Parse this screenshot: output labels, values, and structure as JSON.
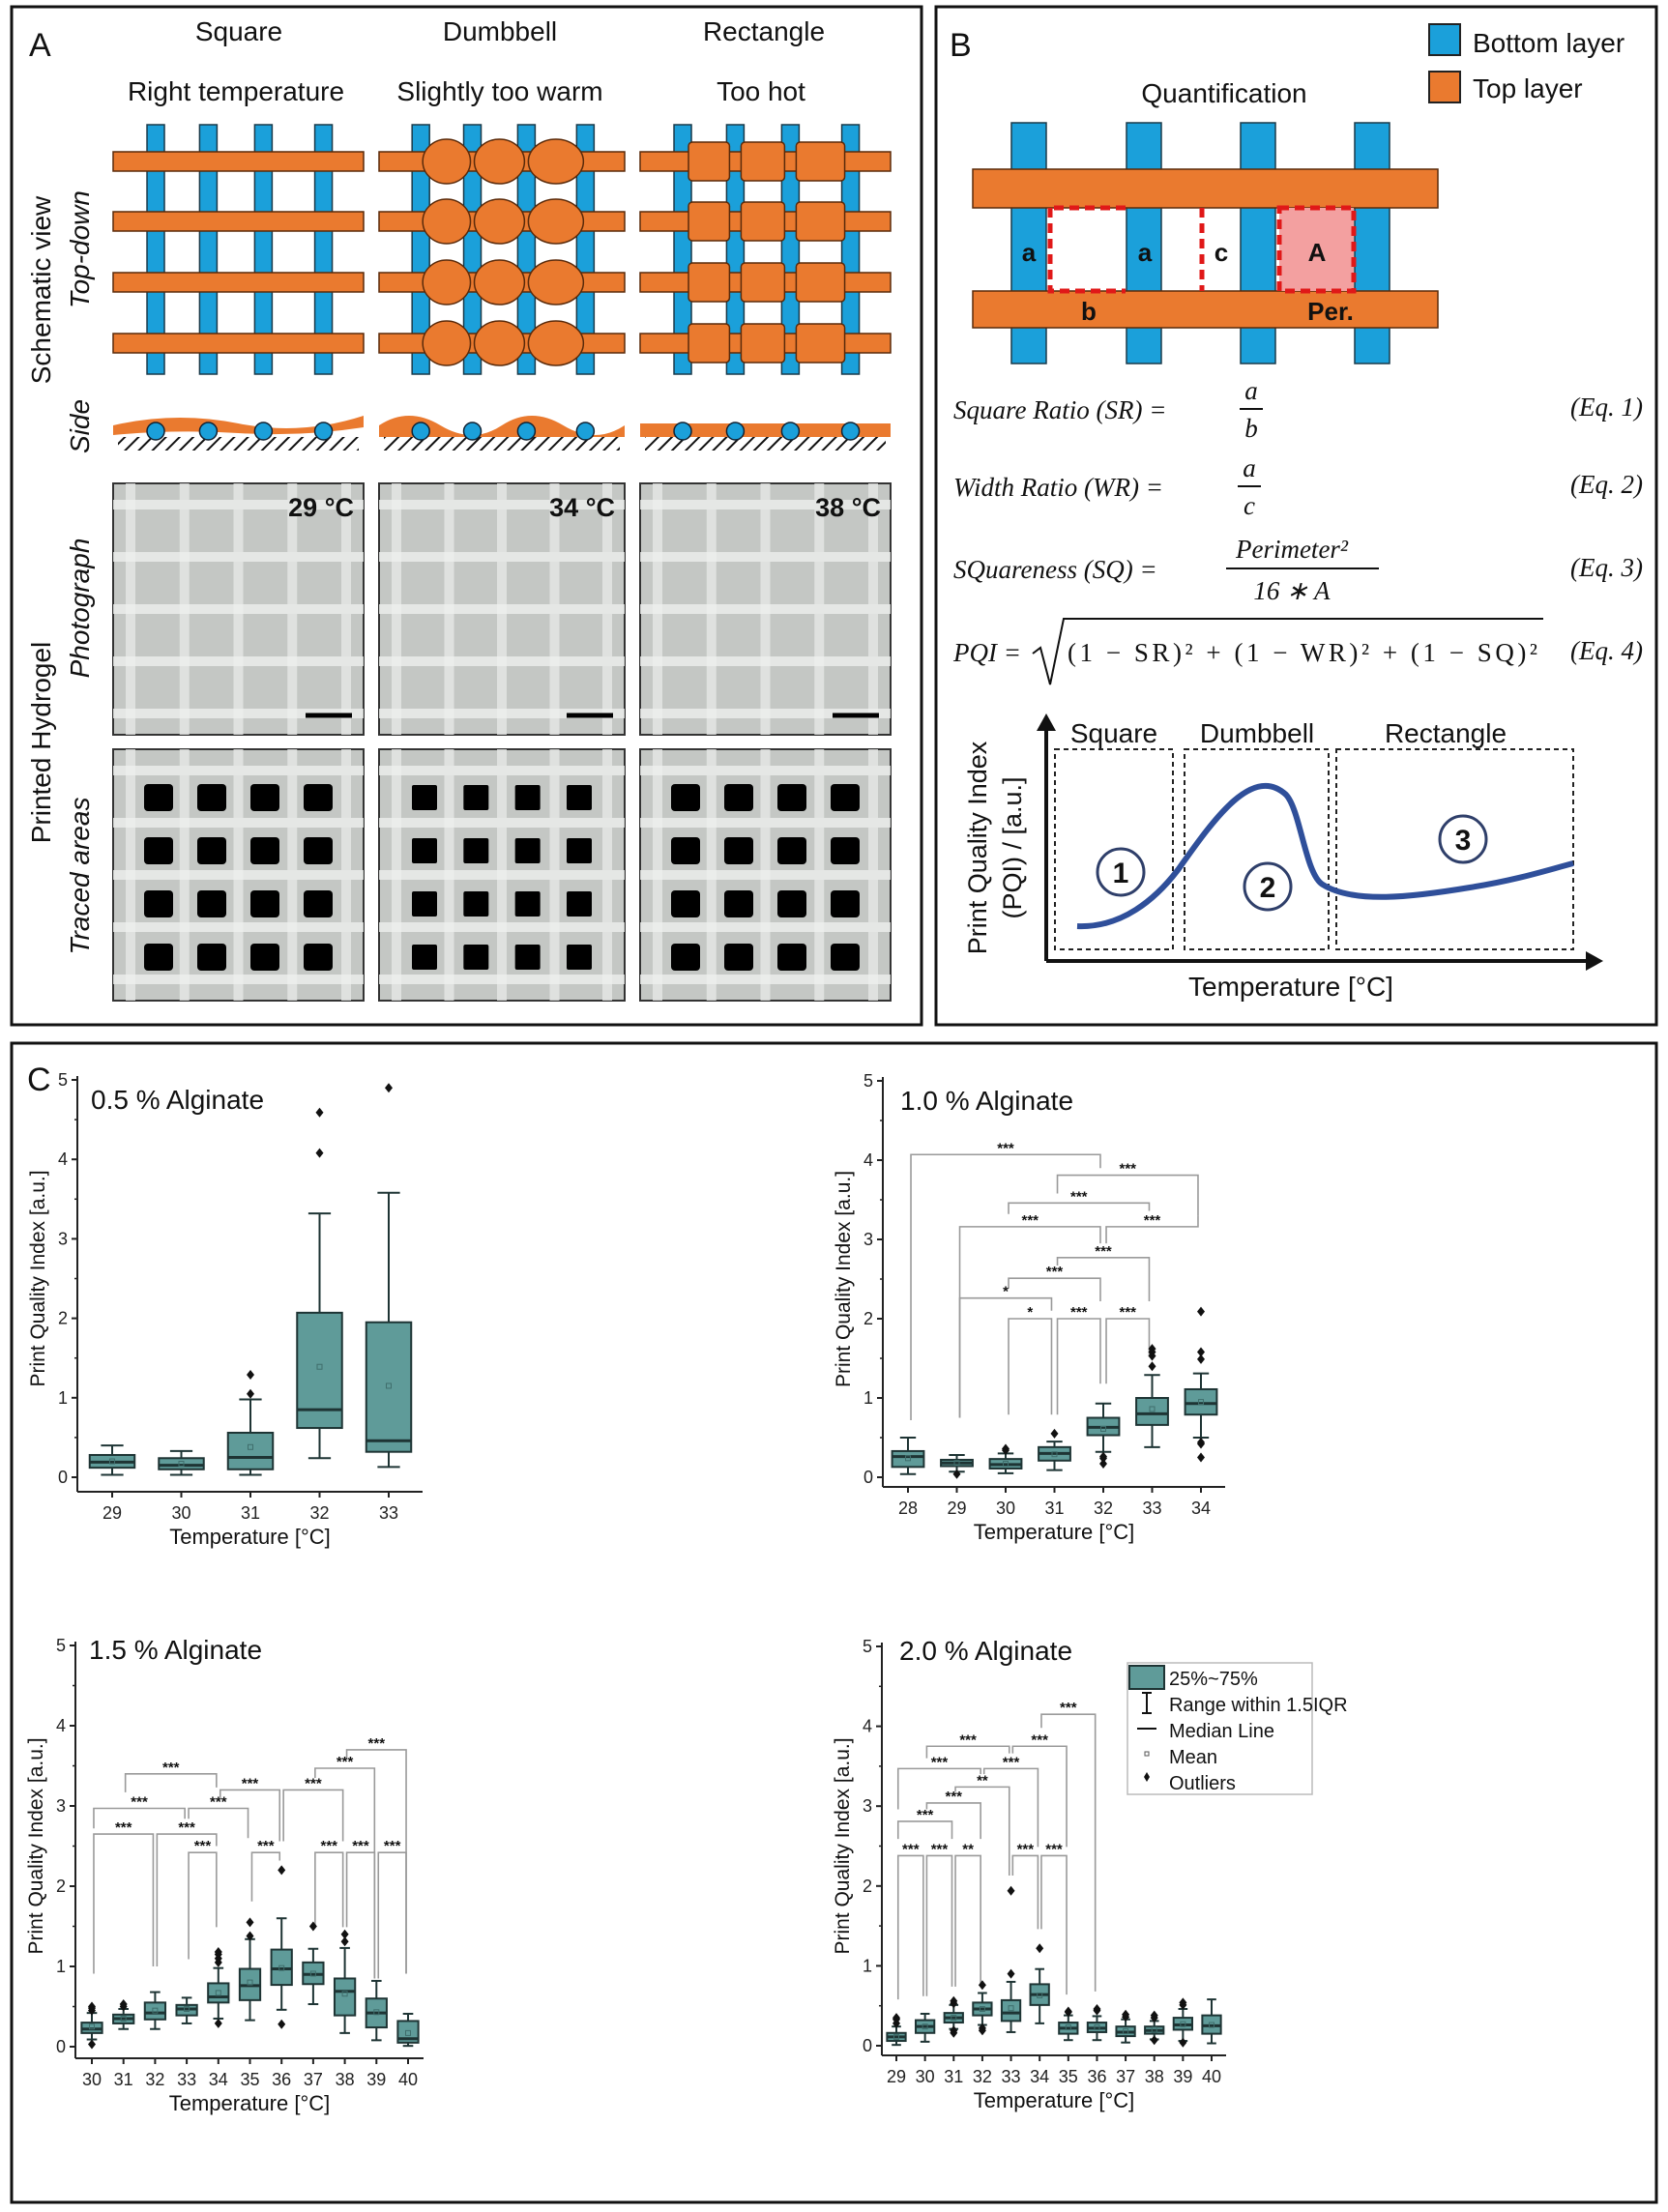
{
  "colors": {
    "bottom_layer": "#1ba0da",
    "top_layer": "#ea7a2f",
    "box_fill": "#5f9b99",
    "box_stroke": "#1e3434",
    "curve": "#2f4f9a",
    "bracket": "#9a9a9a"
  },
  "panel_a": {
    "label": "A",
    "columns": [
      {
        "shape": "Square",
        "condition": "Right temperature",
        "temperature": "29 °C"
      },
      {
        "shape": "Dumbbell",
        "condition": "Slightly too warm",
        "temperature": "34 °C"
      },
      {
        "shape": "Rectangle",
        "condition": "Too hot",
        "temperature": "38 °C"
      }
    ],
    "row_labels": {
      "schematic": "Schematic view",
      "top_down": "Top-down",
      "side": "Side",
      "printed": "Printed Hydrogel",
      "photograph": "Photograph",
      "traced": "Traced areas"
    }
  },
  "panel_b": {
    "label": "B",
    "legend": [
      {
        "label": "Bottom layer"
      },
      {
        "label": "Top layer"
      }
    ],
    "title": "Quantification",
    "labels": {
      "a": "a",
      "b": "b",
      "c": "c",
      "area": "A",
      "perimeter": "Per."
    },
    "equations": [
      {
        "lhs": "Square Ratio (SR) =",
        "num": "a",
        "den": "b",
        "tag": "(Eq. 1)"
      },
      {
        "lhs": "Width Ratio (WR) =",
        "num": "a",
        "den": "c",
        "tag": "(Eq. 2)"
      },
      {
        "lhs": "SQuareness (SQ) =",
        "num": "Perimeter²",
        "den": "16 ∗ A",
        "tag": "(Eq. 3)"
      },
      {
        "lhs": "PQI =",
        "radicand": "(1 − SR)² + (1 − WR)² + (1 − SQ)²",
        "tag": "(Eq. 4)"
      }
    ],
    "graph": {
      "regions": [
        "Square",
        "Dumbbell",
        "Rectangle"
      ],
      "numbers": [
        "1",
        "2",
        "3"
      ],
      "ylabel_line1": "Print Quality Index",
      "ylabel_line2": "(PQI) / [a.u.]",
      "xlabel": "Temperature [°C]"
    }
  },
  "panel_c": {
    "label": "C"
  },
  "chart_data": [
    {
      "type": "box",
      "title": "0.5 % Alginate",
      "xlabel": "Temperature [°C]",
      "ylabel": "Print Quality Index [a.u.]",
      "ylim": [
        0,
        5
      ],
      "yticks": [
        0,
        1,
        2,
        3,
        4,
        5
      ],
      "categories": [
        "29",
        "30",
        "31",
        "32",
        "33"
      ],
      "boxes": [
        {
          "whislo": 0.03,
          "q1": 0.12,
          "med": 0.19,
          "q3": 0.28,
          "whishi": 0.4,
          "mean": 0.2,
          "outliers": []
        },
        {
          "whislo": 0.03,
          "q1": 0.1,
          "med": 0.15,
          "q3": 0.24,
          "whishi": 0.33,
          "mean": 0.17,
          "outliers": []
        },
        {
          "whislo": 0.03,
          "q1": 0.1,
          "med": 0.25,
          "q3": 0.56,
          "whishi": 0.98,
          "mean": 0.38,
          "outliers": [
            1.05,
            1.29
          ]
        },
        {
          "whislo": 0.24,
          "q1": 0.62,
          "med": 0.85,
          "q3": 2.07,
          "whishi": 3.32,
          "mean": 1.39,
          "outliers": [
            4.08,
            4.59
          ]
        },
        {
          "whislo": 0.13,
          "q1": 0.32,
          "med": 0.46,
          "q3": 1.95,
          "whishi": 3.58,
          "mean": 1.15,
          "outliers": [
            4.9
          ]
        }
      ],
      "significance": []
    },
    {
      "type": "box",
      "title": "1.0 % Alginate",
      "xlabel": "Temperature [°C]",
      "ylabel": "Print Quality Index [a.u.]",
      "ylim": [
        0,
        5
      ],
      "yticks": [
        0,
        1,
        2,
        3,
        4,
        5
      ],
      "categories": [
        "28",
        "29",
        "30",
        "31",
        "32",
        "33",
        "34"
      ],
      "boxes": [
        {
          "whislo": 0.04,
          "q1": 0.13,
          "med": 0.26,
          "q3": 0.33,
          "whishi": 0.5,
          "mean": 0.24,
          "outliers": []
        },
        {
          "whislo": 0.07,
          "q1": 0.14,
          "med": 0.18,
          "q3": 0.22,
          "whishi": 0.28,
          "mean": 0.18,
          "outliers": [
            0.04
          ]
        },
        {
          "whislo": 0.05,
          "q1": 0.11,
          "med": 0.16,
          "q3": 0.23,
          "whishi": 0.3,
          "mean": 0.17,
          "outliers": [
            0.34,
            0.36
          ]
        },
        {
          "whislo": 0.09,
          "q1": 0.21,
          "med": 0.3,
          "q3": 0.38,
          "whishi": 0.45,
          "mean": 0.29,
          "outliers": [
            0.55
          ]
        },
        {
          "whislo": 0.32,
          "q1": 0.53,
          "med": 0.63,
          "q3": 0.75,
          "whishi": 0.93,
          "mean": 0.61,
          "outliers": [
            0.17,
            0.24,
            0.26
          ]
        },
        {
          "whislo": 0.38,
          "q1": 0.66,
          "med": 0.8,
          "q3": 1.0,
          "whishi": 1.29,
          "mean": 0.86,
          "outliers": [
            1.4,
            1.53,
            1.58,
            1.62
          ]
        },
        {
          "whislo": 0.5,
          "q1": 0.79,
          "med": 0.93,
          "q3": 1.11,
          "whishi": 1.31,
          "mean": 0.95,
          "outliers": [
            0.25,
            0.42,
            0.44,
            1.49,
            1.58,
            2.09
          ]
        }
      ],
      "significance": [
        {
          "from": "28",
          "to": "32",
          "label": "***",
          "y": 4.07,
          "left_to": 0.72,
          "right_to": 3.9
        },
        {
          "from": "31",
          "to": "34",
          "label": "***",
          "y": 3.81,
          "left_to": 3.58,
          "right_to": 3.3
        },
        {
          "from": "30",
          "to": "33",
          "label": "***",
          "y": 3.46,
          "left_to": 3.32,
          "right_to": 3.36
        },
        {
          "from": "29",
          "to": "32",
          "label": "***",
          "y": 3.16,
          "left_to": 0.75,
          "right_to": 2.95
        },
        {
          "from": "32",
          "to": "34",
          "label": "***",
          "y": 3.16,
          "left_to": 2.95,
          "right_to": 3.3
        },
        {
          "from": "31",
          "to": "33",
          "label": "***",
          "y": 2.77,
          "left_to": 2.67,
          "right_to": 2.22
        },
        {
          "from": "30",
          "to": "32",
          "label": "***",
          "y": 2.51,
          "left_to": 2.38,
          "right_to": 2.22
        },
        {
          "from": "29",
          "to": "31",
          "label": "*",
          "y": 2.26,
          "left_to": 0.75,
          "right_to": 2.1
        },
        {
          "from": "30",
          "to": "31",
          "label": "*",
          "y": 2.0,
          "left_to": 0.79,
          "right_to": 0.79
        },
        {
          "from": "31",
          "to": "32",
          "label": "***",
          "y": 2.0,
          "left_to": 0.79,
          "right_to": 1.18
        },
        {
          "from": "32",
          "to": "33",
          "label": "***",
          "y": 2.0,
          "left_to": 1.18,
          "right_to": 1.52
        }
      ]
    },
    {
      "type": "box",
      "title": "1.5 % Alginate",
      "xlabel": "Temperature [°C]",
      "ylabel": "Print Quality Index [a.u.]",
      "ylim": [
        0,
        5
      ],
      "yticks": [
        0,
        1,
        2,
        3,
        4,
        5
      ],
      "categories": [
        "30",
        "31",
        "32",
        "33",
        "34",
        "35",
        "36",
        "37",
        "38",
        "39",
        "40"
      ],
      "boxes": [
        {
          "whislo": 0.09,
          "q1": 0.17,
          "med": 0.22,
          "q3": 0.3,
          "whishi": 0.42,
          "mean": 0.25,
          "outliers": [
            0.03,
            0.45,
            0.48,
            0.5
          ]
        },
        {
          "whislo": 0.22,
          "q1": 0.29,
          "med": 0.35,
          "q3": 0.4,
          "whishi": 0.47,
          "mean": 0.35,
          "outliers": [
            0.5,
            0.53
          ]
        },
        {
          "whislo": 0.22,
          "q1": 0.34,
          "med": 0.42,
          "q3": 0.55,
          "whishi": 0.68,
          "mean": 0.45,
          "outliers": []
        },
        {
          "whislo": 0.29,
          "q1": 0.39,
          "med": 0.47,
          "q3": 0.52,
          "whishi": 0.61,
          "mean": 0.47,
          "outliers": []
        },
        {
          "whislo": 0.35,
          "q1": 0.55,
          "med": 0.62,
          "q3": 0.79,
          "whishi": 0.98,
          "mean": 0.67,
          "outliers": [
            0.29,
            1.05,
            1.1,
            1.15,
            1.18
          ]
        },
        {
          "whislo": 0.33,
          "q1": 0.58,
          "med": 0.76,
          "q3": 0.97,
          "whishi": 1.34,
          "mean": 0.8,
          "outliers": [
            1.38,
            1.55
          ]
        },
        {
          "whislo": 0.46,
          "q1": 0.77,
          "med": 0.97,
          "q3": 1.21,
          "whishi": 1.6,
          "mean": 0.98,
          "outliers": [
            0.28,
            2.2
          ]
        },
        {
          "whislo": 0.53,
          "q1": 0.78,
          "med": 0.9,
          "q3": 1.05,
          "whishi": 1.22,
          "mean": 0.91,
          "outliers": [
            1.5
          ]
        },
        {
          "whislo": 0.17,
          "q1": 0.39,
          "med": 0.69,
          "q3": 0.85,
          "whishi": 1.23,
          "mean": 0.66,
          "outliers": [
            1.31,
            1.4
          ]
        },
        {
          "whislo": 0.08,
          "q1": 0.24,
          "med": 0.42,
          "q3": 0.6,
          "whishi": 0.82,
          "mean": 0.43,
          "outliers": []
        },
        {
          "whislo": 0.01,
          "q1": 0.05,
          "med": 0.1,
          "q3": 0.32,
          "whishi": 0.41,
          "mean": 0.17,
          "outliers": []
        }
      ],
      "significance": [
        {
          "from": "38",
          "to": "40",
          "label": "***",
          "y": 3.7,
          "left_to": 3.59,
          "right_to": 0.91
        },
        {
          "from": "37",
          "to": "39",
          "label": "***",
          "y": 3.47,
          "left_to": 3.35,
          "right_to": 0.85
        },
        {
          "from": "31",
          "to": "34",
          "label": "***",
          "y": 3.4,
          "left_to": 3.17,
          "right_to": 3.23
        },
        {
          "from": "34",
          "to": "36",
          "label": "***",
          "y": 3.2,
          "left_to": 3.1,
          "right_to": 2.56
        },
        {
          "from": "36",
          "to": "38",
          "label": "***",
          "y": 3.2,
          "left_to": 2.56,
          "right_to": 2.56
        },
        {
          "from": "30",
          "to": "33",
          "label": "***",
          "y": 2.97,
          "left_to": 2.72,
          "right_to": 2.84
        },
        {
          "from": "33",
          "to": "35",
          "label": "***",
          "y": 2.97,
          "left_to": 2.84,
          "right_to": 2.6
        },
        {
          "from": "30",
          "to": "32",
          "label": "***",
          "y": 2.65,
          "left_to": 0.91,
          "right_to": 1.0
        },
        {
          "from": "32",
          "to": "34",
          "label": "***",
          "y": 2.65,
          "left_to": 1.0,
          "right_to": 2.5
        },
        {
          "from": "33",
          "to": "34",
          "label": "***",
          "y": 2.42,
          "left_to": 1.09,
          "right_to": 1.49
        },
        {
          "from": "35",
          "to": "36",
          "label": "***",
          "y": 2.42,
          "left_to": 1.81,
          "right_to": 2.32
        },
        {
          "from": "37",
          "to": "38",
          "label": "***",
          "y": 2.42,
          "left_to": 1.51,
          "right_to": 1.49
        },
        {
          "from": "38",
          "to": "39",
          "label": "***",
          "y": 2.42,
          "left_to": 1.49,
          "right_to": 0.85
        },
        {
          "from": "39",
          "to": "40",
          "label": "***",
          "y": 2.42,
          "left_to": 0.85,
          "right_to": 0.91
        }
      ]
    },
    {
      "type": "box",
      "title": "2.0 % Alginate",
      "xlabel": "Temperature [°C]",
      "ylabel": "Print Quality Index [a.u.]",
      "ylim": [
        0,
        5
      ],
      "yticks": [
        0,
        1,
        2,
        3,
        4,
        5
      ],
      "categories": [
        "29",
        "30",
        "31",
        "32",
        "33",
        "34",
        "35",
        "36",
        "37",
        "38",
        "39",
        "40"
      ],
      "boxes": [
        {
          "whislo": 0.01,
          "q1": 0.06,
          "med": 0.11,
          "q3": 0.16,
          "whishi": 0.24,
          "mean": 0.11,
          "outliers": [
            0.28,
            0.33,
            0.35
          ]
        },
        {
          "whislo": 0.05,
          "q1": 0.16,
          "med": 0.24,
          "q3": 0.32,
          "whishi": 0.4,
          "mean": 0.24,
          "outliers": []
        },
        {
          "whislo": 0.21,
          "q1": 0.29,
          "med": 0.35,
          "q3": 0.41,
          "whishi": 0.51,
          "mean": 0.35,
          "outliers": [
            0.16,
            0.19,
            0.53,
            0.56
          ]
        },
        {
          "whislo": 0.26,
          "q1": 0.38,
          "med": 0.46,
          "q3": 0.54,
          "whishi": 0.66,
          "mean": 0.46,
          "outliers": [
            0.19,
            0.22,
            0.76
          ]
        },
        {
          "whislo": 0.17,
          "q1": 0.31,
          "med": 0.41,
          "q3": 0.57,
          "whishi": 0.8,
          "mean": 0.47,
          "outliers": [
            0.9,
            1.94
          ]
        },
        {
          "whislo": 0.28,
          "q1": 0.51,
          "med": 0.64,
          "q3": 0.77,
          "whishi": 0.96,
          "mean": 0.63,
          "outliers": [
            1.22
          ]
        },
        {
          "whislo": 0.07,
          "q1": 0.15,
          "med": 0.22,
          "q3": 0.29,
          "whishi": 0.38,
          "mean": 0.23,
          "outliers": [
            0.42,
            0.43
          ]
        },
        {
          "whislo": 0.07,
          "q1": 0.17,
          "med": 0.22,
          "q3": 0.29,
          "whishi": 0.37,
          "mean": 0.23,
          "outliers": [
            0.44,
            0.46
          ]
        },
        {
          "whislo": 0.04,
          "q1": 0.12,
          "med": 0.17,
          "q3": 0.24,
          "whishi": 0.33,
          "mean": 0.18,
          "outliers": [
            0.36,
            0.39
          ]
        },
        {
          "whislo": 0.08,
          "q1": 0.15,
          "med": 0.19,
          "q3": 0.24,
          "whishi": 0.31,
          "mean": 0.2,
          "outliers": [
            0.07,
            0.35,
            0.38
          ]
        },
        {
          "whislo": 0.06,
          "q1": 0.2,
          "med": 0.26,
          "q3": 0.35,
          "whishi": 0.46,
          "mean": 0.27,
          "outliers": [
            0.04,
            0.51,
            0.54
          ]
        },
        {
          "whislo": 0.03,
          "q1": 0.15,
          "med": 0.25,
          "q3": 0.38,
          "whishi": 0.58,
          "mean": 0.26,
          "outliers": []
        }
      ],
      "significance": [
        {
          "from": "34",
          "to": "36",
          "label": "***",
          "y": 4.15,
          "left_to": 3.98,
          "right_to": 0.68
        },
        {
          "from": "30",
          "to": "33",
          "label": "***",
          "y": 3.75,
          "left_to": 3.6,
          "right_to": 3.66
        },
        {
          "from": "33",
          "to": "35",
          "label": "***",
          "y": 3.75,
          "left_to": 3.66,
          "right_to": 2.49
        },
        {
          "from": "29",
          "to": "32",
          "label": "***",
          "y": 3.47,
          "left_to": 2.96,
          "right_to": 3.4
        },
        {
          "from": "32",
          "to": "34",
          "label": "***",
          "y": 3.47,
          "left_to": 3.4,
          "right_to": 2.49
        },
        {
          "from": "31",
          "to": "33",
          "label": "**",
          "y": 3.24,
          "left_to": 3.18,
          "right_to": 2.13
        },
        {
          "from": "30",
          "to": "32",
          "label": "***",
          "y": 3.04,
          "left_to": 2.96,
          "right_to": 2.59
        },
        {
          "from": "29",
          "to": "31",
          "label": "***",
          "y": 2.81,
          "left_to": 2.59,
          "right_to": 2.59
        },
        {
          "from": "29",
          "to": "30",
          "label": "***",
          "y": 2.38,
          "left_to": 0.58,
          "right_to": 0.62
        },
        {
          "from": "30",
          "to": "31",
          "label": "***",
          "y": 2.38,
          "left_to": 0.62,
          "right_to": 0.74
        },
        {
          "from": "31",
          "to": "32",
          "label": "**",
          "y": 2.38,
          "left_to": 0.74,
          "right_to": 0.76
        },
        {
          "from": "33",
          "to": "34",
          "label": "***",
          "y": 2.38,
          "left_to": 2.13,
          "right_to": 1.46
        },
        {
          "from": "34",
          "to": "35",
          "label": "***",
          "y": 2.38,
          "left_to": 1.46,
          "right_to": 0.64
        }
      ],
      "legend": {
        "position": "top-right",
        "items": [
          "25%~75%",
          "Range within 1.5IQR",
          "Median Line",
          "Mean",
          "Outliers"
        ]
      }
    }
  ]
}
